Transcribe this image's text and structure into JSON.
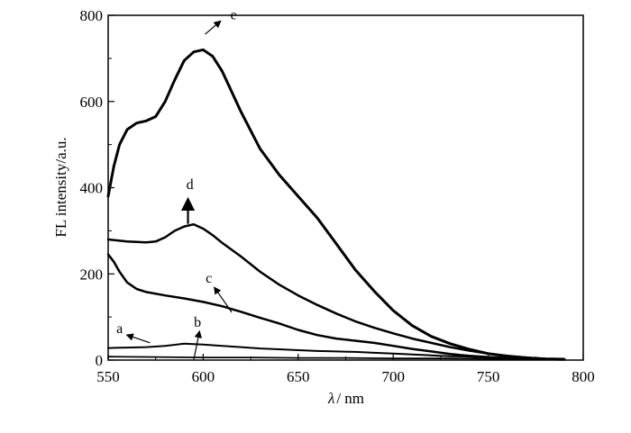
{
  "chart_data": {
    "type": "line",
    "xlabel_italic": "λ",
    "xlabel_rest": "/ nm",
    "ylabel": "FL intensity/a.u.",
    "xlim": [
      550,
      800
    ],
    "ylim": [
      0,
      800
    ],
    "xticks": [
      550,
      600,
      650,
      700,
      750,
      800
    ],
    "yticks": [
      0,
      200,
      400,
      600,
      800
    ],
    "grid": false,
    "series": [
      {
        "label": "a",
        "stroke_width": 2,
        "x": [
          550,
          560,
          570,
          580,
          590,
          600,
          610,
          620,
          630,
          640,
          650,
          660,
          670,
          680,
          690,
          700,
          710,
          720,
          730,
          740,
          750,
          760,
          770,
          780,
          790
        ],
        "y": [
          28,
          29,
          30,
          33,
          38,
          36,
          33,
          30,
          27,
          25,
          23,
          21,
          20,
          19,
          17,
          15,
          13,
          11,
          9,
          8,
          6,
          5,
          4,
          3,
          2
        ]
      },
      {
        "label": "b",
        "stroke_width": 1.8,
        "x": [
          550,
          575,
          600,
          625,
          650,
          675,
          700,
          725,
          750,
          770,
          790
        ],
        "y": [
          8,
          7,
          6,
          6,
          5,
          5,
          4,
          4,
          3,
          3,
          2
        ]
      },
      {
        "label": "c",
        "stroke_width": 2.5,
        "x": [
          550,
          553,
          556,
          560,
          565,
          570,
          580,
          590,
          600,
          610,
          620,
          630,
          640,
          650,
          660,
          670,
          680,
          690,
          700,
          710,
          720,
          730,
          740,
          750,
          760,
          770,
          780,
          790
        ],
        "y": [
          245,
          228,
          205,
          180,
          165,
          158,
          150,
          143,
          135,
          125,
          112,
          98,
          85,
          70,
          58,
          50,
          45,
          40,
          33,
          26,
          20,
          14,
          10,
          7,
          5,
          3,
          2,
          1
        ]
      },
      {
        "label": "d",
        "stroke_width": 2.5,
        "x": [
          550,
          560,
          570,
          575,
          580,
          585,
          590,
          595,
          600,
          605,
          610,
          620,
          630,
          640,
          650,
          660,
          670,
          680,
          690,
          700,
          710,
          720,
          730,
          740,
          750,
          760,
          770,
          780,
          790
        ],
        "y": [
          280,
          275,
          273,
          275,
          285,
          300,
          310,
          315,
          305,
          290,
          272,
          240,
          205,
          175,
          150,
          128,
          108,
          90,
          75,
          62,
          50,
          40,
          30,
          22,
          15,
          10,
          6,
          3,
          2
        ]
      },
      {
        "label": "e",
        "stroke_width": 3,
        "x": [
          550,
          553,
          556,
          560,
          565,
          570,
          575,
          580,
          585,
          590,
          595,
          600,
          605,
          610,
          620,
          630,
          640,
          650,
          660,
          670,
          680,
          690,
          700,
          710,
          720,
          730,
          740,
          750,
          760,
          770,
          780,
          790
        ],
        "y": [
          380,
          450,
          500,
          535,
          550,
          555,
          565,
          600,
          650,
          695,
          715,
          720,
          705,
          670,
          575,
          490,
          430,
          380,
          330,
          270,
          210,
          160,
          115,
          80,
          55,
          38,
          25,
          15,
          9,
          5,
          3,
          2
        ]
      }
    ],
    "annotations": [
      {
        "text": "e",
        "points_to_series": "e"
      },
      {
        "text": "d",
        "points_to_series": "d"
      },
      {
        "text": "c",
        "points_to_series": "c"
      },
      {
        "text": "b",
        "points_to_series": "b"
      },
      {
        "text": "a",
        "points_to_series": "a"
      }
    ]
  }
}
